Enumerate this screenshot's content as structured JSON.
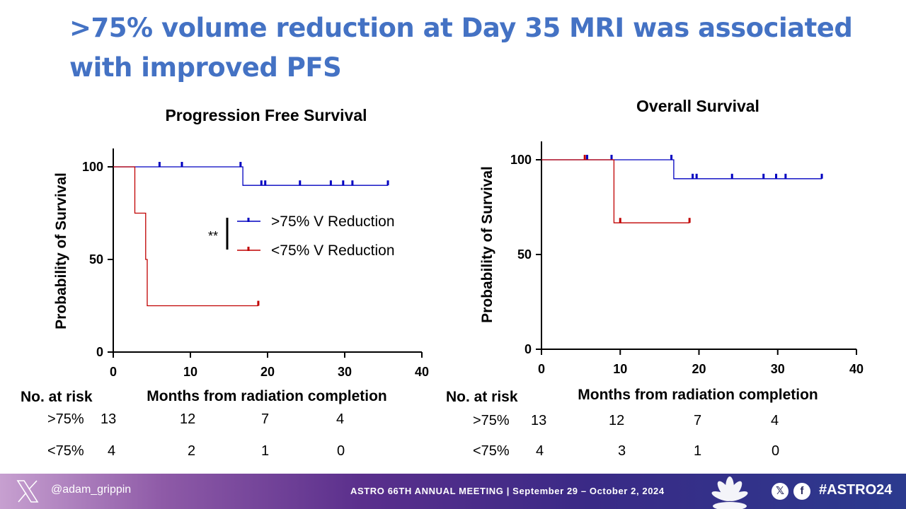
{
  "slide": {
    "title": ">75% volume reduction at Day 35 MRI was associated with improved PFS"
  },
  "colors": {
    "title": "#4472c4",
    "series_high": "#0000c0",
    "series_low": "#c00000"
  },
  "chart_data": [
    {
      "type": "line",
      "subtype": "kaplan-meier",
      "title": "Progression Free Survival",
      "xlabel": "Months from radiation completion",
      "ylabel": "Probability of Survival",
      "xlim": [
        0,
        40
      ],
      "ylim": [
        0,
        100
      ],
      "xticks": [
        0,
        10,
        20,
        30,
        40
      ],
      "yticks": [
        0,
        50,
        100
      ],
      "series": [
        {
          "name": ">75% V Reduction",
          "color": "#0000c0",
          "steps": [
            [
              0,
              100
            ],
            [
              16.8,
              100
            ],
            [
              16.8,
              90
            ],
            [
              35.6,
              90
            ]
          ],
          "censors": [
            [
              6,
              100
            ],
            [
              8.9,
              100
            ],
            [
              16.5,
              100
            ],
            [
              19.2,
              90
            ],
            [
              19.7,
              90
            ],
            [
              24.2,
              90
            ],
            [
              28.2,
              90
            ],
            [
              29.8,
              90
            ],
            [
              31,
              90
            ],
            [
              35.6,
              90
            ]
          ]
        },
        {
          "name": "<75% V Reduction",
          "color": "#c00000",
          "steps": [
            [
              0,
              100
            ],
            [
              2.8,
              100
            ],
            [
              2.8,
              75
            ],
            [
              4.2,
              75
            ],
            [
              4.2,
              50
            ],
            [
              4.4,
              50
            ],
            [
              4.4,
              25
            ],
            [
              18.8,
              25
            ]
          ],
          "censors": [
            [
              18.8,
              25
            ]
          ]
        }
      ],
      "legend": {
        "position": "center-right",
        "significance": "**"
      },
      "risk_table": {
        "header": "No. at risk",
        "rows": [
          {
            "label": ">75%",
            "values": [
              "13",
              "12",
              "7",
              "4"
            ]
          },
          {
            "label": "<75%",
            "values": [
              "4",
              "2",
              "1",
              "0"
            ]
          }
        ]
      }
    },
    {
      "type": "line",
      "subtype": "kaplan-meier",
      "title": "Overall Survival",
      "xlabel": "Months from radiation completion",
      "ylabel": "Probability of Survival",
      "xlim": [
        0,
        40
      ],
      "ylim": [
        0,
        100
      ],
      "xticks": [
        0,
        10,
        20,
        30,
        40
      ],
      "yticks": [
        0,
        50,
        100
      ],
      "series": [
        {
          "name": ">75% V Reduction",
          "color": "#0000c0",
          "steps": [
            [
              0,
              100
            ],
            [
              16.8,
              100
            ],
            [
              16.8,
              90
            ],
            [
              35.6,
              90
            ]
          ],
          "censors": [
            [
              5.8,
              100
            ],
            [
              8.9,
              100
            ],
            [
              16.5,
              100
            ],
            [
              19.2,
              90
            ],
            [
              19.7,
              90
            ],
            [
              24.2,
              90
            ],
            [
              28.2,
              90
            ],
            [
              29.8,
              90
            ],
            [
              31,
              90
            ],
            [
              35.6,
              90
            ]
          ]
        },
        {
          "name": "<75% V Reduction",
          "color": "#c00000",
          "steps": [
            [
              0,
              100
            ],
            [
              9.2,
              100
            ],
            [
              9.2,
              66.7
            ],
            [
              18.8,
              66.7
            ]
          ],
          "censors": [
            [
              5.5,
              100
            ],
            [
              10,
              66.7
            ],
            [
              18.8,
              66.7
            ]
          ]
        }
      ],
      "risk_table": {
        "header": "No. at risk",
        "rows": [
          {
            "label": ">75%",
            "values": [
              "13",
              "12",
              "7",
              "4"
            ]
          },
          {
            "label": "<75%",
            "values": [
              "4",
              "3",
              "1",
              "0"
            ]
          }
        ]
      }
    }
  ],
  "footer": {
    "handle": "@adam_grippin",
    "meeting": "ASTRO 66TH ANNUAL MEETING | September 29 – October 2, 2024",
    "hashtag": "#ASTRO24",
    "icons": [
      "x-logo-icon",
      "x-social-icon",
      "facebook-icon",
      "flower-logo-icon"
    ]
  }
}
